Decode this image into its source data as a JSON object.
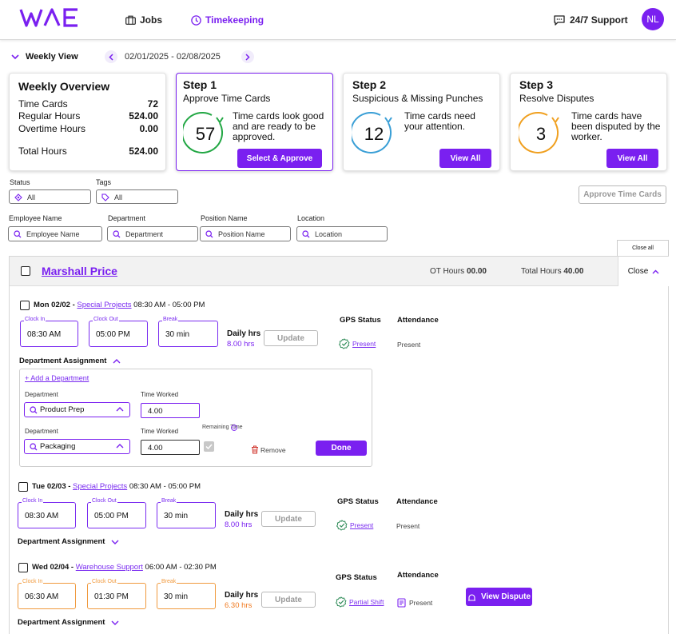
{
  "header": {
    "logo": "WAE",
    "nav": [
      {
        "label": "Jobs",
        "icon": "briefcase-icon"
      },
      {
        "label": "Timekeeping",
        "icon": "clock-icon"
      }
    ],
    "support_label": "24/7 Support",
    "avatar_initials": "NL"
  },
  "week": {
    "view_label": "Weekly View",
    "range": "02/01/2025 - 02/08/2025"
  },
  "overview": {
    "title": "Weekly Overview",
    "rows": [
      {
        "label": "Time Cards",
        "value": "72"
      },
      {
        "label": "Regular Hours",
        "value": "524.00"
      },
      {
        "label": "Overtime Hours",
        "value": "0.00"
      }
    ],
    "total_label": "Total Hours",
    "total_value": "524.00"
  },
  "steps": [
    {
      "step": "Step 1",
      "subtitle": "Approve Time Cards",
      "count": "57",
      "text": "Time cards look good and are ready to be approved.",
      "button": "Select & Approve",
      "color": "#22a744"
    },
    {
      "step": "Step 2",
      "subtitle": "Suspicious & Missing Punches",
      "count": "12",
      "text": "Time cards need your attention.",
      "button": "View All",
      "color": "#3a9fd6"
    },
    {
      "step": "Step 3",
      "subtitle": "Resolve Disputes",
      "count": "3",
      "text": "Time cards have been disputed by the worker.",
      "button": "View All",
      "color": "#f0a020"
    }
  ],
  "filters": {
    "status_label": "Status",
    "status_value": "All",
    "tags_label": "Tags",
    "tags_value": "All",
    "approve_button": "Approve Time Cards",
    "employee_label": "Employee Name",
    "employee_placeholder": "Employee Name",
    "department_label": "Department",
    "department_placeholder": "Department",
    "position_label": "Position Name",
    "position_placeholder": "Position Name",
    "location_label": "Location",
    "location_placeholder": "Location",
    "close_all": "Close all"
  },
  "employee": {
    "name": "Marshall Price",
    "ot_label": "OT Hours",
    "ot_value": "00.00",
    "total_label": "Total Hours",
    "total_value": "40.00",
    "close_label": "Close"
  },
  "labels": {
    "clock_in": "Clock In",
    "clock_out": "Clock Out",
    "break": "Break",
    "daily_hrs": "Daily hrs",
    "update": "Update",
    "gps_status": "GPS Status",
    "attendance": "Attendance",
    "dept_assignment": "Department Assignment"
  },
  "days": [
    {
      "day": "Mon 02/02 -",
      "project": "Special Projects",
      "time": "08:30 AM - 05:00 PM",
      "clock_in": "08:30 AM",
      "clock_out": "05:00 PM",
      "break": "30 min",
      "daily": "8.00 hrs",
      "gps": "Present",
      "attendance": "Present"
    },
    {
      "day": "Tue 02/03 -",
      "project": "Special Projects",
      "time": "08:30 AM - 05:00 PM",
      "clock_in": "08:30 AM",
      "clock_out": "05:00 PM",
      "break": "30 min",
      "daily": "8.00 hrs",
      "gps": "Present",
      "attendance": "Present"
    },
    {
      "day": "Wed 02/04 -",
      "project": "Warehouse Support",
      "time": "06:00 AM - 02:30 PM",
      "clock_in": "06:30 AM",
      "clock_out": "01:30 PM",
      "break": "30 min",
      "daily": "6.30 hrs",
      "gps": "Partial Shift",
      "attendance": "Present",
      "dispute_button": "View Dispute"
    }
  ],
  "dept_panel": {
    "add_link": "+ Add a Department",
    "dept_label": "Department",
    "time_label": "Time Worked",
    "rows": [
      {
        "department": "Product Prep",
        "time": "4.00"
      },
      {
        "department": "Packaging",
        "time": "4.00"
      }
    ],
    "remaining_label": "Remaining Time",
    "remove_label": "Remove",
    "done_label": "Done"
  }
}
